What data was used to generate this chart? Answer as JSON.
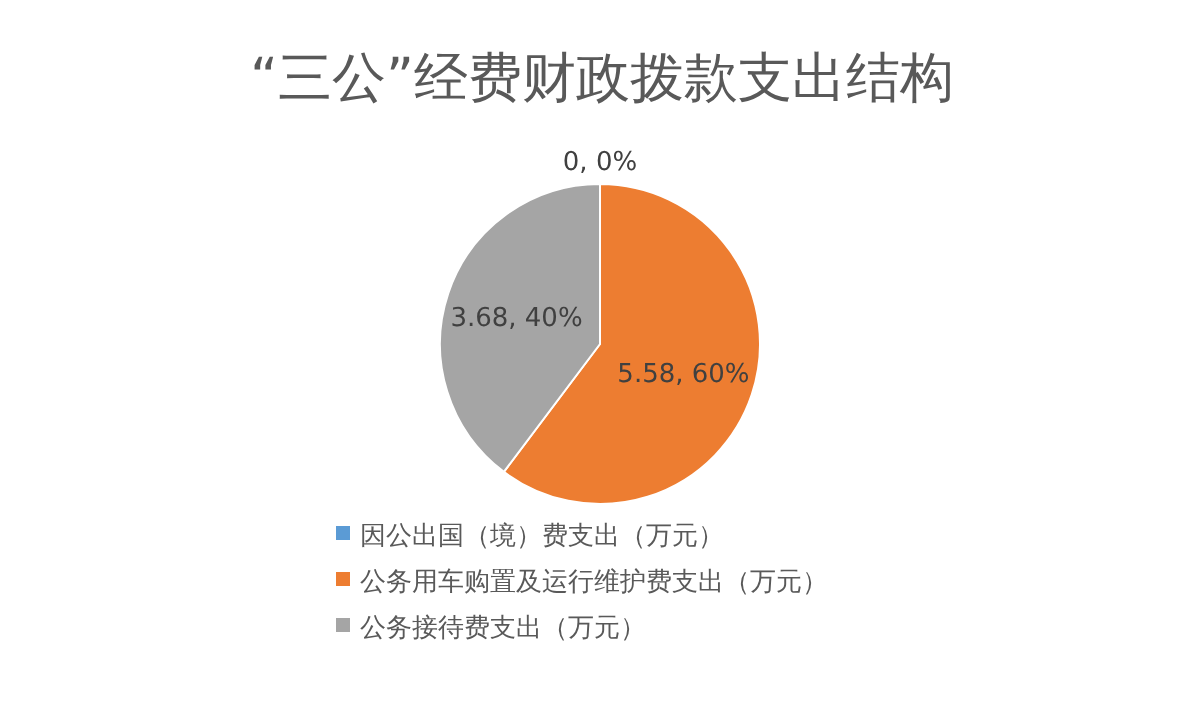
{
  "chart_data": {
    "type": "pie",
    "title": "“三公”经费财政拨款支出结构",
    "categories": [
      "因公出国（境）费支出（万元）",
      "公务用车购置及运行维护费支出（万元）",
      "公务接待费支出（万元）"
    ],
    "values": [
      0,
      5.58,
      3.68
    ],
    "colors": [
      "#5b9bd5",
      "#ed7d31",
      "#a5a5a5"
    ],
    "value_labels": [
      "0, 0%",
      "5.58, 60%",
      "3.68, 40%"
    ],
    "legend": "bottom"
  }
}
